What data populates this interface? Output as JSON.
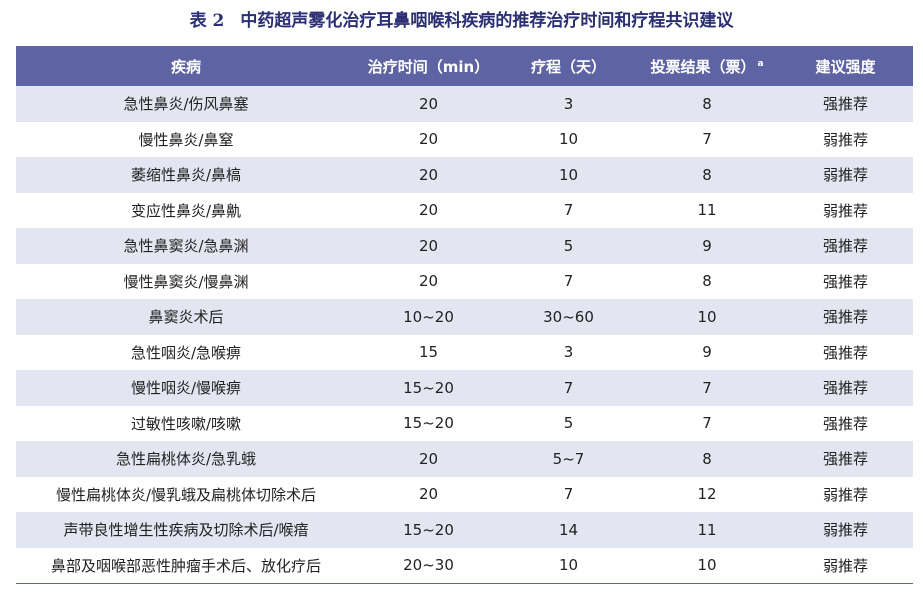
{
  "title": {
    "number": "表 2",
    "text": "中药超声雾化治疗耳鼻咽喉科疾病的推荐治疗时间和疗程共识建议"
  },
  "table": {
    "headers": {
      "disease": "疾病",
      "time": "治疗时间（min）",
      "course": "疗程（天）",
      "votes": "投票结果（票）",
      "votes_note": "a",
      "strength": "建议强度"
    },
    "rows": [
      {
        "disease": "急性鼻炎/伤风鼻塞",
        "time": "20",
        "course": "3",
        "votes": "8",
        "strength": "强推荐"
      },
      {
        "disease": "慢性鼻炎/鼻窒",
        "time": "20",
        "course": "10",
        "votes": "7",
        "strength": "弱推荐"
      },
      {
        "disease": "萎缩性鼻炎/鼻槁",
        "time": "20",
        "course": "10",
        "votes": "8",
        "strength": "弱推荐"
      },
      {
        "disease": "变应性鼻炎/鼻鼽",
        "time": "20",
        "course": "7",
        "votes": "11",
        "strength": "弱推荐"
      },
      {
        "disease": "急性鼻窦炎/急鼻渊",
        "time": "20",
        "course": "5",
        "votes": "9",
        "strength": "强推荐"
      },
      {
        "disease": "慢性鼻窦炎/慢鼻渊",
        "time": "20",
        "course": "7",
        "votes": "8",
        "strength": "强推荐"
      },
      {
        "disease": "鼻窦炎术后",
        "time": "10~20",
        "course": "30~60",
        "votes": "10",
        "strength": "强推荐"
      },
      {
        "disease": "急性咽炎/急喉痹",
        "time": "15",
        "course": "3",
        "votes": "9",
        "strength": "强推荐"
      },
      {
        "disease": "慢性咽炎/慢喉痹",
        "time": "15~20",
        "course": "7",
        "votes": "7",
        "strength": "强推荐"
      },
      {
        "disease": "过敏性咳嗽/咳嗽",
        "time": "15~20",
        "course": "5",
        "votes": "7",
        "strength": "强推荐"
      },
      {
        "disease": "急性扁桃体炎/急乳蛾",
        "time": "20",
        "course": "5~7",
        "votes": "8",
        "strength": "强推荐"
      },
      {
        "disease": "慢性扁桃体炎/慢乳蛾及扁桃体切除术后",
        "time": "20",
        "course": "7",
        "votes": "12",
        "strength": "弱推荐"
      },
      {
        "disease": "声带良性增生性疾病及切除术后/喉瘖",
        "time": "15~20",
        "course": "14",
        "votes": "11",
        "strength": "弱推荐"
      },
      {
        "disease": "鼻部及咽喉部恶性肿瘤手术后、放化疗后",
        "time": "20~30",
        "course": "10",
        "votes": "10",
        "strength": "弱推荐"
      }
    ]
  },
  "colors": {
    "header_background": "#5e64a3",
    "stripe_background": "#e3e5f1",
    "title_color": "#2b2f73"
  }
}
